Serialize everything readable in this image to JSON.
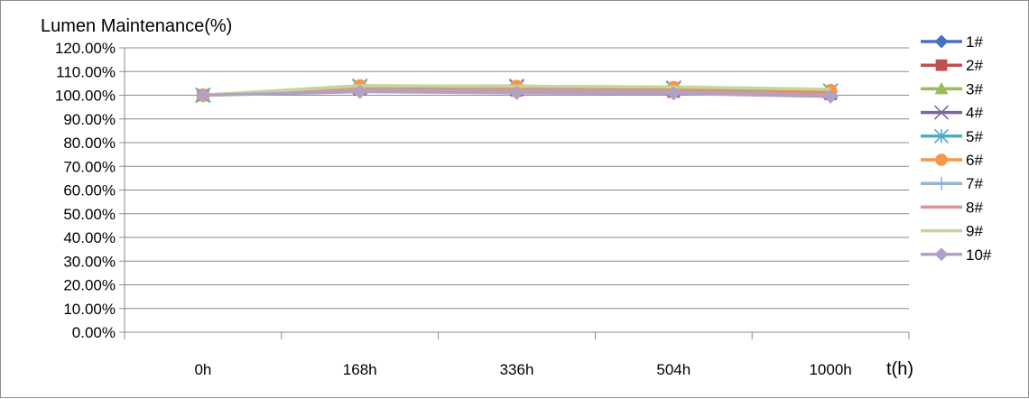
{
  "chart_data": {
    "type": "line",
    "title": "",
    "ylabel": "Lumen Maintenance(%)",
    "xlabel": "t(h)",
    "categories": [
      "0h",
      "168h",
      "336h",
      "504h",
      "1000h"
    ],
    "ylim": [
      0,
      120
    ],
    "ytick_step": 10,
    "ytick_suffix": ".00%",
    "grid": true,
    "legend_position": "right",
    "series": [
      {
        "name": "1#",
        "color": "#4472c4",
        "marker": "diamond",
        "values": [
          100,
          103.5,
          103.5,
          103.0,
          101.5
        ]
      },
      {
        "name": "2#",
        "color": "#c0504d",
        "marker": "square",
        "values": [
          100,
          102.5,
          102.0,
          101.5,
          100.5
        ]
      },
      {
        "name": "3#",
        "color": "#9bbb59",
        "marker": "triangle",
        "values": [
          100,
          103.0,
          102.8,
          102.5,
          101.5
        ]
      },
      {
        "name": "4#",
        "color": "#8064a2",
        "marker": "x",
        "values": [
          100,
          103.8,
          103.8,
          103.0,
          101.8
        ]
      },
      {
        "name": "5#",
        "color": "#4bacc6",
        "marker": "star",
        "values": [
          100,
          103.5,
          103.3,
          102.8,
          101.8
        ]
      },
      {
        "name": "6#",
        "color": "#f79646",
        "marker": "circle",
        "values": [
          100,
          104.0,
          103.8,
          103.3,
          102.0
        ]
      },
      {
        "name": "7#",
        "color": "#95b3d7",
        "marker": "plus",
        "values": [
          100,
          102.0,
          101.5,
          101.0,
          100.0
        ]
      },
      {
        "name": "8#",
        "color": "#d99694",
        "marker": "dash",
        "values": [
          100,
          102.5,
          102.3,
          101.8,
          100.5
        ]
      },
      {
        "name": "9#",
        "color": "#c3d69b",
        "marker": "dash",
        "values": [
          100,
          104.0,
          103.8,
          103.5,
          102.5
        ]
      },
      {
        "name": "10#",
        "color": "#b2a1c7",
        "marker": "diamond",
        "values": [
          100,
          101.5,
          101.0,
          100.8,
          99.5
        ]
      }
    ]
  }
}
